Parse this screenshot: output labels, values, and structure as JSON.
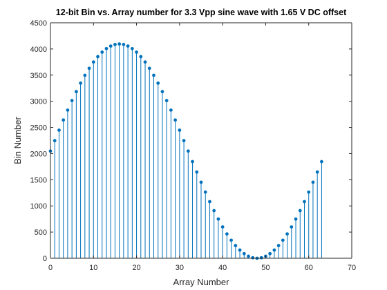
{
  "chart_data": {
    "type": "stem",
    "title": "12-bit Bin vs. Array number for 3.3 Vpp sine wave with 1.65 V DC offset",
    "xlabel": "Array Number",
    "ylabel": "Bin Number",
    "xlim": [
      0,
      70
    ],
    "ylim": [
      0,
      4500
    ],
    "xticks": [
      "0",
      "10",
      "20",
      "30",
      "40",
      "50",
      "60",
      "70"
    ],
    "yticks": [
      "0",
      "500",
      "1000",
      "1500",
      "2000",
      "2500",
      "3000",
      "3500",
      "4000",
      "4500"
    ],
    "grid": false,
    "color": "#0072BD",
    "series": [
      {
        "x": [
          0,
          1,
          2,
          3,
          4,
          5,
          6,
          7,
          8,
          9,
          10,
          11,
          12,
          13,
          14,
          15,
          16,
          17,
          18,
          19,
          20,
          21,
          22,
          23,
          24,
          25,
          26,
          27,
          28,
          29,
          30,
          31,
          32,
          33,
          34,
          35,
          36,
          37,
          38,
          39,
          40,
          41,
          42,
          43,
          44,
          45,
          46,
          47,
          48,
          49,
          50,
          51,
          52,
          53,
          54,
          55,
          56,
          57,
          58,
          59,
          60,
          61,
          62,
          63
        ],
        "values": [
          2048,
          2248,
          2447,
          2642,
          2831,
          3013,
          3185,
          3346,
          3496,
          3630,
          3750,
          3853,
          3939,
          4007,
          4056,
          4085,
          4095,
          4085,
          4056,
          4007,
          3939,
          3853,
          3750,
          3630,
          3496,
          3346,
          3185,
          3013,
          2831,
          2642,
          2447,
          2248,
          2048,
          1847,
          1648,
          1453,
          1264,
          1082,
          910,
          749,
          599,
          465,
          345,
          242,
          156,
          88,
          39,
          10,
          0,
          10,
          39,
          88,
          156,
          242,
          345,
          465,
          599,
          749,
          910,
          1082,
          1264,
          1453,
          1648,
          1847
        ]
      }
    ]
  }
}
